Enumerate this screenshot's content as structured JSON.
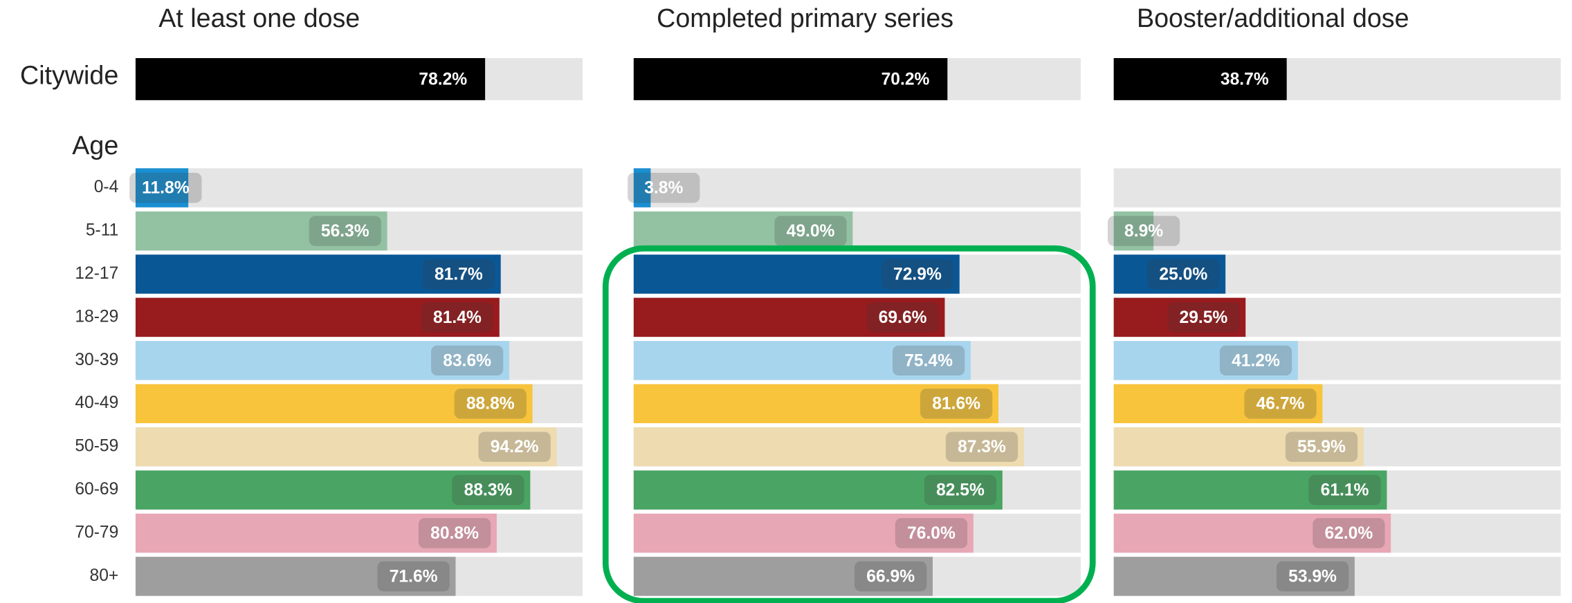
{
  "row_labels": {
    "total": "Citywide",
    "group": "Age",
    "categories": [
      "0-4",
      "5-11",
      "12-17",
      "18-29",
      "30-39",
      "40-49",
      "50-59",
      "60-69",
      "70-79",
      "80+"
    ]
  },
  "total_color": "#000000",
  "colors": [
    "#1a8fd1",
    "#93c2a3",
    "#0a5796",
    "#981b1e",
    "#a8d5ee",
    "#f7c43c",
    "#eedbb0",
    "#4aa463",
    "#e8a7b5",
    "#9e9e9e"
  ],
  "chart_data": [
    {
      "type": "barh",
      "title": "At least one dose",
      "xlim": [
        0,
        100
      ],
      "total": 78.2,
      "total_label": "78.2%",
      "values": [
        11.8,
        56.3,
        81.7,
        81.4,
        83.6,
        88.8,
        94.2,
        88.3,
        80.8,
        71.6
      ],
      "value_labels": [
        "11.8%",
        "56.3%",
        "81.7%",
        "81.4%",
        "83.6%",
        "88.8%",
        "94.2%",
        "88.3%",
        "80.8%",
        "71.6%"
      ]
    },
    {
      "type": "barh",
      "title": "Completed primary series",
      "xlim": [
        0,
        100
      ],
      "total": 70.2,
      "total_label": "70.2%",
      "values": [
        3.8,
        49.0,
        72.9,
        69.6,
        75.4,
        81.6,
        87.3,
        82.5,
        76.0,
        66.9
      ],
      "value_labels": [
        "3.8%",
        "49.0%",
        "72.9%",
        "69.6%",
        "75.4%",
        "81.6%",
        "87.3%",
        "82.5%",
        "76.0%",
        "66.9%"
      ]
    },
    {
      "type": "barh",
      "title": "Booster/additional dose",
      "xlim": [
        0,
        100
      ],
      "total": 38.7,
      "total_label": "38.7%",
      "values": [
        null,
        8.9,
        25.0,
        29.5,
        41.2,
        46.7,
        55.9,
        61.1,
        62.0,
        53.9
      ],
      "value_labels": [
        null,
        "8.9%",
        "25.0%",
        "29.5%",
        "41.2%",
        "46.7%",
        "55.9%",
        "61.1%",
        "62.0%",
        "53.9%"
      ]
    }
  ]
}
